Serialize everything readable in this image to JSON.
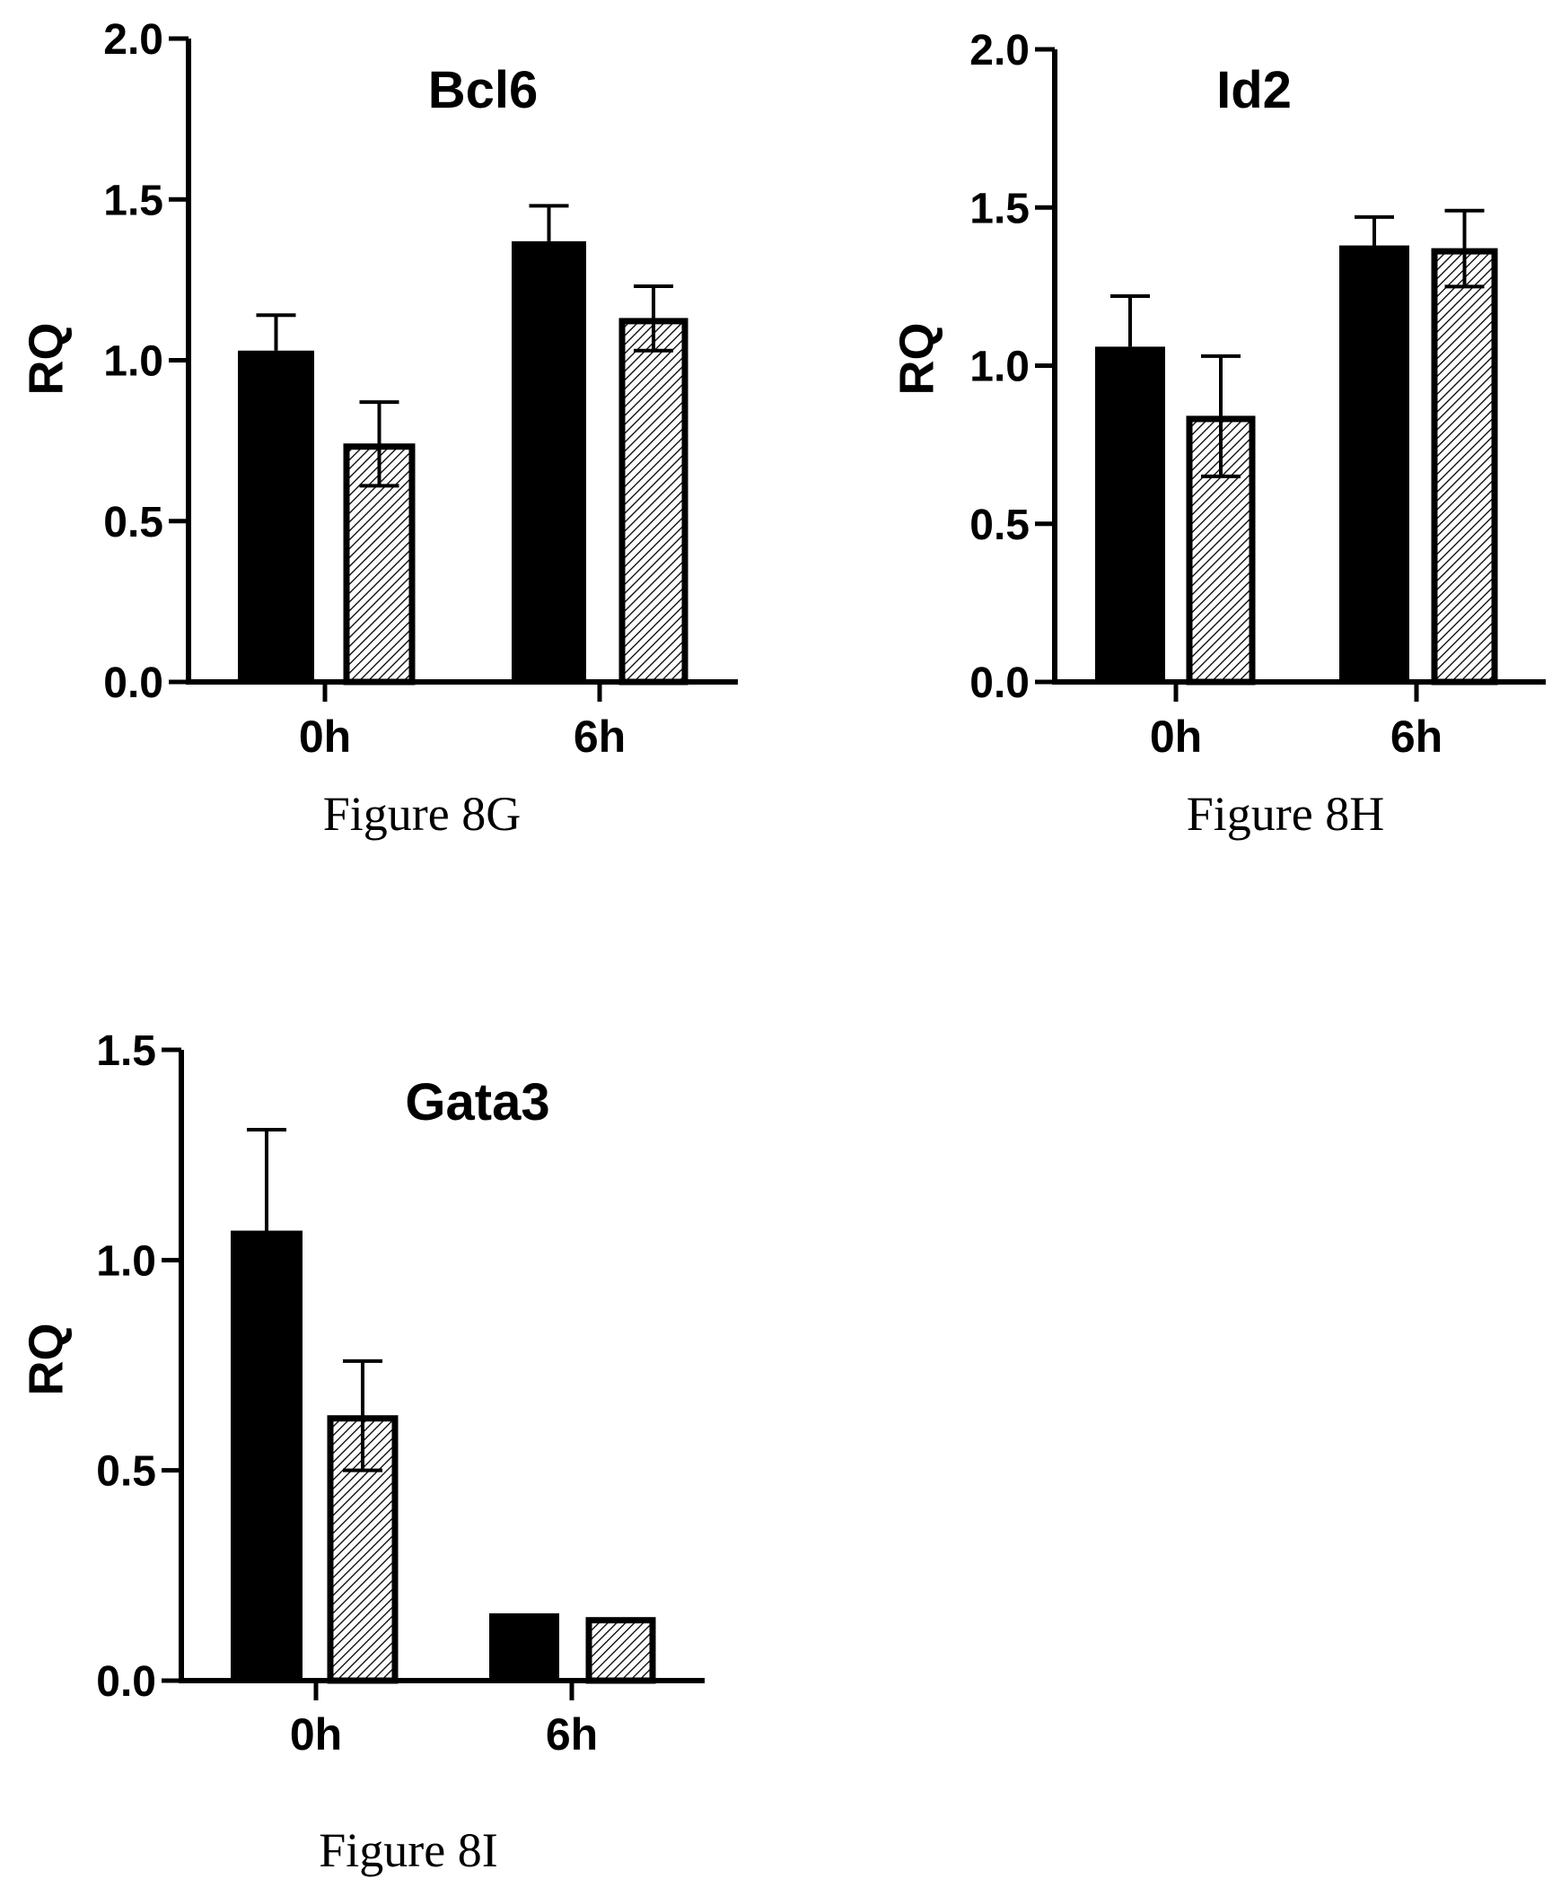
{
  "chart_data": [
    {
      "type": "bar",
      "title": "Bcl6",
      "ylabel": "RQ",
      "caption": "Figure 8G",
      "ylim": [
        0,
        2.0
      ],
      "yticks": [
        "0.0",
        "0.5",
        "1.0",
        "1.5",
        "2.0"
      ],
      "categories": [
        "0h",
        "6h"
      ],
      "series": [
        {
          "style": "solid",
          "values": [
            1.03,
            1.37
          ],
          "errors": [
            0.11,
            0.11
          ]
        },
        {
          "style": "hatched",
          "values": [
            0.74,
            1.13
          ],
          "errors": [
            0.13,
            0.1
          ]
        }
      ]
    },
    {
      "type": "bar",
      "title": "Id2",
      "ylabel": "RQ",
      "caption": "Figure 8H",
      "ylim": [
        0,
        2.0
      ],
      "yticks": [
        "0.0",
        "0.5",
        "1.0",
        "1.5",
        "2.0"
      ],
      "categories": [
        "0h",
        "6h"
      ],
      "series": [
        {
          "style": "solid",
          "values": [
            1.06,
            1.38
          ],
          "errors": [
            0.16,
            0.09
          ]
        },
        {
          "style": "hatched",
          "values": [
            0.84,
            1.37
          ],
          "errors": [
            0.19,
            0.12
          ]
        }
      ]
    },
    {
      "type": "bar",
      "title": "Gata3",
      "ylabel": "RQ",
      "caption": "Figure 8I",
      "ylim": [
        0,
        1.5
      ],
      "yticks": [
        "0.0",
        "0.5",
        "1.0",
        "1.5"
      ],
      "categories": [
        "0h",
        "6h"
      ],
      "series": [
        {
          "style": "solid",
          "values": [
            1.07,
            0.16
          ],
          "errors": [
            0.24,
            0
          ]
        },
        {
          "style": "hatched",
          "values": [
            0.63,
            0.15
          ],
          "errors": [
            0.13,
            0
          ]
        }
      ]
    }
  ],
  "colors": {
    "solid_bar": "#000000",
    "hatch_line": "#000000",
    "background": "#ffffff"
  }
}
